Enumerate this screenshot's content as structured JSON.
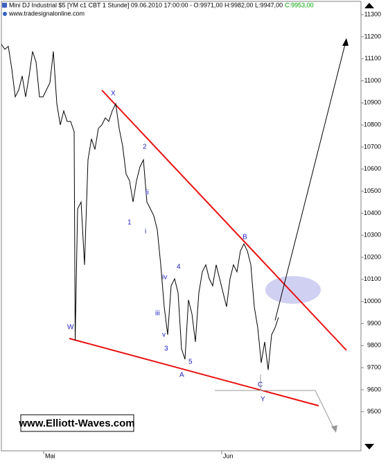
{
  "chart_data": {
    "type": "line",
    "title": "Mini DJ Industrial $5 [YM c1 CBT  1 Stunde] 09.06.2010 17:00:00 - O:9971,00 H:9982,00 L:9947,00",
    "close_label": "C:9953,00",
    "source": "www.tradesignalonline.com",
    "watermark": "www.Elliott-Waves.com",
    "color": "#000000",
    "x": [
      0,
      1,
      2,
      3,
      4,
      5,
      6,
      7,
      8,
      9,
      10,
      11,
      12,
      13,
      14,
      15,
      16,
      17,
      18,
      19,
      20,
      21,
      21.3,
      22,
      23,
      24,
      25,
      26,
      27,
      28,
      29,
      30,
      31,
      32,
      33,
      34,
      35,
      36,
      37,
      38,
      39,
      40,
      41,
      42,
      43,
      44,
      45,
      46,
      47,
      48,
      49,
      50,
      51,
      52,
      53,
      54,
      55,
      56,
      57,
      58,
      59,
      60,
      61,
      62,
      63,
      64,
      65,
      66,
      67,
      68,
      69,
      70,
      71,
      72,
      73,
      74,
      75,
      76,
      77,
      78,
      79,
      80
    ],
    "values": [
      11165,
      11143,
      11156,
      11054,
      10927,
      10959,
      11022,
      10927,
      11022,
      11133,
      11086,
      10927,
      10927,
      10959,
      10991,
      11133,
      10896,
      10800,
      10864,
      10816,
      10816,
      10769,
      9823,
      10420,
      10451,
      10166,
      10642,
      10737,
      10689,
      10784,
      10800,
      10832,
      10816,
      10864,
      10896,
      10784,
      10705,
      10578,
      10547,
      10451,
      10547,
      10610,
      10642,
      10451,
      10420,
      10388,
      10325,
      10166,
      9976,
      9849,
      10071,
      10103,
      10039,
      9785,
      9738,
      10007,
      9944,
      9817,
      10039,
      10134,
      10166,
      10103,
      10071,
      10166,
      10103,
      10039,
      9976,
      10103,
      10166,
      10134,
      10229,
      10261,
      10229,
      10166,
      9976,
      9881,
      9722,
      9817,
      9690,
      9849,
      9881,
      9928
    ],
    "xlim": [
      0,
      103.8
    ],
    "xticks": [
      {
        "value": 12.2,
        "label": "Mai"
      },
      {
        "value": 63.6,
        "label": "Jun"
      }
    ],
    "ylim": [
      9323,
      11360
    ],
    "yticks": [
      9500,
      9600,
      9700,
      9800,
      9900,
      10000,
      10100,
      10200,
      10300,
      10400,
      10500,
      10600,
      10700,
      10800,
      10900,
      11000,
      11100,
      11200,
      11300
    ],
    "grid": false,
    "wave_labels": [
      "X",
      "2",
      "ii",
      "1",
      "i",
      "iii",
      "iv",
      "4",
      "v",
      "3",
      "5",
      "A",
      "W",
      "B",
      "C",
      "Y"
    ]
  }
}
